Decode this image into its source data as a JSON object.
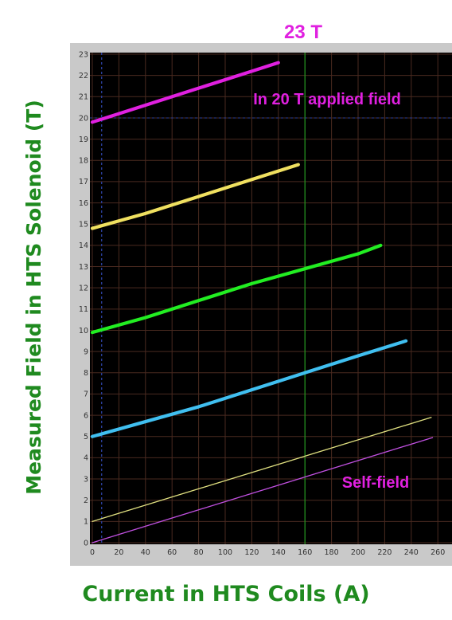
{
  "chart_data": {
    "type": "line",
    "title": "23 T",
    "xlabel": "Current in HTS Coils (A)",
    "ylabel": "Measured Field in HTS Solenoid (T)",
    "xlim": [
      0,
      270
    ],
    "ylim": [
      0,
      23
    ],
    "x_ticks": [
      0,
      20,
      40,
      60,
      80,
      100,
      120,
      140,
      160,
      180,
      200,
      220,
      240,
      260
    ],
    "y_ticks": [
      0,
      1,
      2,
      3,
      4,
      5,
      6,
      7,
      8,
      9,
      10,
      11,
      12,
      13,
      14,
      15,
      16,
      17,
      18,
      19,
      20,
      21,
      22,
      23
    ],
    "grid": true,
    "reference_lines": {
      "vertical_x": 160,
      "horizontal_y": 20,
      "dashed_vertical_x": 7
    },
    "annotations": [
      {
        "text": "In 20 T applied field",
        "color": "#e020e0"
      },
      {
        "text": "Self-field",
        "color": "#e020e0"
      }
    ],
    "series": [
      {
        "color": "#e020e0",
        "thick": true,
        "x": [
          0,
          40,
          80,
          120,
          140
        ],
        "y": [
          19.8,
          20.6,
          21.4,
          22.2,
          22.6
        ]
      },
      {
        "color": "#f0e060",
        "thick": true,
        "x": [
          0,
          40,
          80,
          120,
          155
        ],
        "y": [
          14.8,
          15.5,
          16.3,
          17.1,
          17.8
        ]
      },
      {
        "color": "#22ee22",
        "thick": true,
        "x": [
          0,
          40,
          80,
          120,
          160,
          200,
          217
        ],
        "y": [
          9.9,
          10.6,
          11.4,
          12.2,
          12.9,
          13.6,
          14.0
        ]
      },
      {
        "color": "#40bff0",
        "thick": true,
        "x": [
          0,
          40,
          80,
          120,
          160,
          200,
          236
        ],
        "y": [
          5.0,
          5.7,
          6.4,
          7.2,
          8.0,
          8.8,
          9.5
        ]
      },
      {
        "color": "#e0e080",
        "thick": false,
        "x": [
          0,
          255
        ],
        "y": [
          1.0,
          5.9
        ]
      },
      {
        "color": "#c050e0",
        "thick": false,
        "x": [
          0,
          256
        ],
        "y": [
          0.0,
          4.95
        ]
      }
    ]
  }
}
